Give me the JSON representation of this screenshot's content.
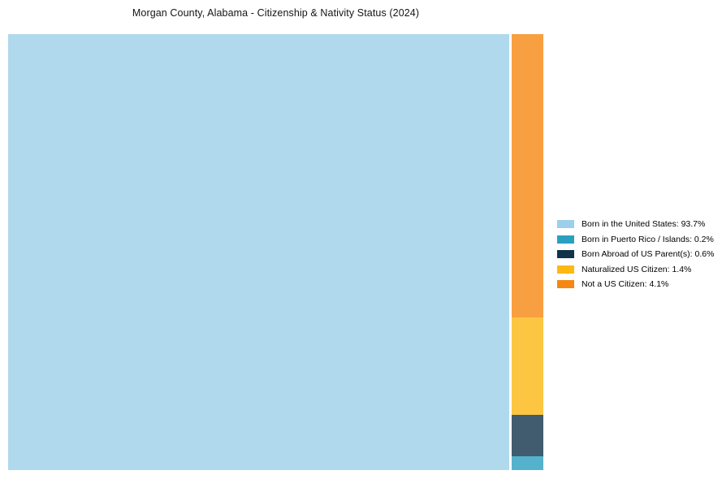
{
  "chart_data": {
    "type": "treemap",
    "title": "Morgan County, Alabama - Citizenship & Nativity Status (2024)",
    "categories": [
      "Born in the United States",
      "Born in Puerto Rico / Islands",
      "Born Abroad of US Parent(s)",
      "Naturalized US Citizen",
      "Not a US Citizen"
    ],
    "values": [
      93.7,
      0.2,
      0.6,
      1.4,
      4.1
    ],
    "unit": "%",
    "colors": [
      "#9CCFE9",
      "#2A9FC0",
      "#10334A",
      "#FDB813",
      "#F68712"
    ],
    "legend_labels": [
      "Born in the United States: 93.7%",
      "Born in Puerto Rico / Islands: 0.2%",
      "Born Abroad of US Parent(s): 0.6%",
      "Naturalized US Citizen: 1.4%",
      "Not a US Citizen: 4.1%"
    ],
    "legend_position": "right-center",
    "layout_hint": "largest category fills left block; remaining categories stacked top-to-bottom in descending order in right column",
    "background": "#FFFFFF"
  }
}
